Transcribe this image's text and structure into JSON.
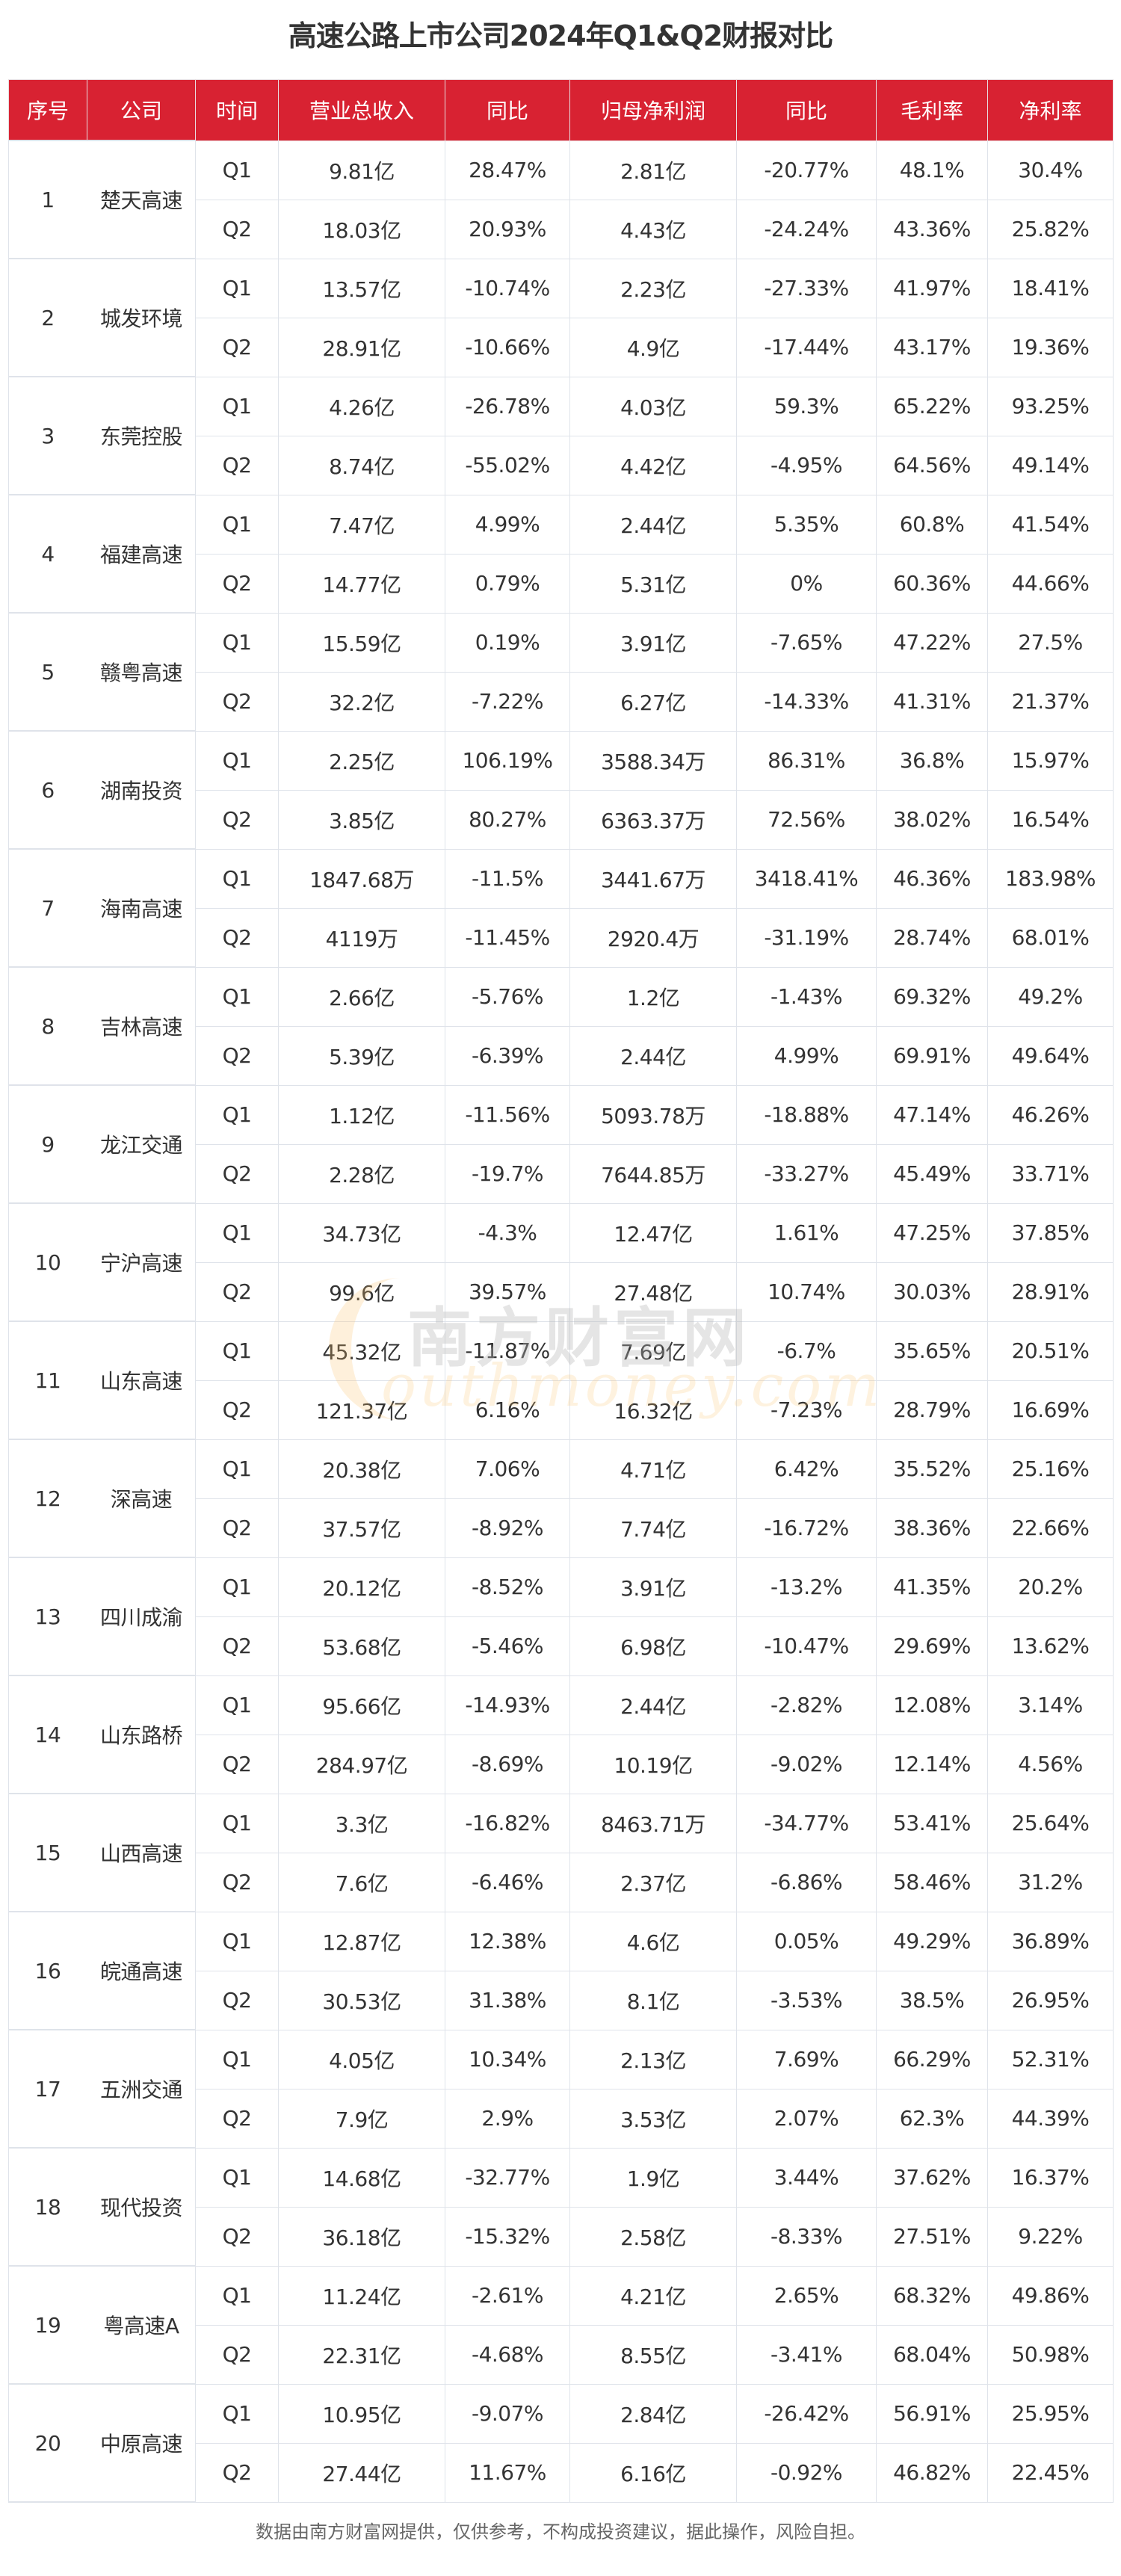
{
  "title": "高速公路上市公司2024年Q1&Q2财报对比",
  "colors": {
    "header_bg": "#d82232",
    "header_text": "#ffffff",
    "border": "#dfe3ea",
    "text": "#333333"
  },
  "table": {
    "headers": [
      "序号",
      "公司",
      "时间",
      "营业总收入",
      "同比",
      "归母净利润",
      "同比",
      "毛利率",
      "净利率"
    ],
    "companies": [
      {
        "no": "1",
        "name": "楚天高速",
        "rows": [
          [
            "Q1",
            "9.81亿",
            "28.47%",
            "2.81亿",
            "-20.77%",
            "48.1%",
            "30.4%"
          ],
          [
            "Q2",
            "18.03亿",
            "20.93%",
            "4.43亿",
            "-24.24%",
            "43.36%",
            "25.82%"
          ]
        ]
      },
      {
        "no": "2",
        "name": "城发环境",
        "rows": [
          [
            "Q1",
            "13.57亿",
            "-10.74%",
            "2.23亿",
            "-27.33%",
            "41.97%",
            "18.41%"
          ],
          [
            "Q2",
            "28.91亿",
            "-10.66%",
            "4.9亿",
            "-17.44%",
            "43.17%",
            "19.36%"
          ]
        ]
      },
      {
        "no": "3",
        "name": "东莞控股",
        "rows": [
          [
            "Q1",
            "4.26亿",
            "-26.78%",
            "4.03亿",
            "59.3%",
            "65.22%",
            "93.25%"
          ],
          [
            "Q2",
            "8.74亿",
            "-55.02%",
            "4.42亿",
            "-4.95%",
            "64.56%",
            "49.14%"
          ]
        ]
      },
      {
        "no": "4",
        "name": "福建高速",
        "rows": [
          [
            "Q1",
            "7.47亿",
            "4.99%",
            "2.44亿",
            "5.35%",
            "60.8%",
            "41.54%"
          ],
          [
            "Q2",
            "14.77亿",
            "0.79%",
            "5.31亿",
            "0%",
            "60.36%",
            "44.66%"
          ]
        ]
      },
      {
        "no": "5",
        "name": "赣粤高速",
        "rows": [
          [
            "Q1",
            "15.59亿",
            "0.19%",
            "3.91亿",
            "-7.65%",
            "47.22%",
            "27.5%"
          ],
          [
            "Q2",
            "32.2亿",
            "-7.22%",
            "6.27亿",
            "-14.33%",
            "41.31%",
            "21.37%"
          ]
        ]
      },
      {
        "no": "6",
        "name": "湖南投资",
        "rows": [
          [
            "Q1",
            "2.25亿",
            "106.19%",
            "3588.34万",
            "86.31%",
            "36.8%",
            "15.97%"
          ],
          [
            "Q2",
            "3.85亿",
            "80.27%",
            "6363.37万",
            "72.56%",
            "38.02%",
            "16.54%"
          ]
        ]
      },
      {
        "no": "7",
        "name": "海南高速",
        "rows": [
          [
            "Q1",
            "1847.68万",
            "-11.5%",
            "3441.67万",
            "3418.41%",
            "46.36%",
            "183.98%"
          ],
          [
            "Q2",
            "4119万",
            "-11.45%",
            "2920.4万",
            "-31.19%",
            "28.74%",
            "68.01%"
          ]
        ]
      },
      {
        "no": "8",
        "name": "吉林高速",
        "rows": [
          [
            "Q1",
            "2.66亿",
            "-5.76%",
            "1.2亿",
            "-1.43%",
            "69.32%",
            "49.2%"
          ],
          [
            "Q2",
            "5.39亿",
            "-6.39%",
            "2.44亿",
            "4.99%",
            "69.91%",
            "49.64%"
          ]
        ]
      },
      {
        "no": "9",
        "name": "龙江交通",
        "rows": [
          [
            "Q1",
            "1.12亿",
            "-11.56%",
            "5093.78万",
            "-18.88%",
            "47.14%",
            "46.26%"
          ],
          [
            "Q2",
            "2.28亿",
            "-19.7%",
            "7644.85万",
            "-33.27%",
            "45.49%",
            "33.71%"
          ]
        ]
      },
      {
        "no": "10",
        "name": "宁沪高速",
        "rows": [
          [
            "Q1",
            "34.73亿",
            "-4.3%",
            "12.47亿",
            "1.61%",
            "47.25%",
            "37.85%"
          ],
          [
            "Q2",
            "99.6亿",
            "39.57%",
            "27.48亿",
            "10.74%",
            "30.03%",
            "28.91%"
          ]
        ]
      },
      {
        "no": "11",
        "name": "山东高速",
        "rows": [
          [
            "Q1",
            "45.32亿",
            "-11.87%",
            "7.69亿",
            "-6.7%",
            "35.65%",
            "20.51%"
          ],
          [
            "Q2",
            "121.37亿",
            "6.16%",
            "16.32亿",
            "-7.23%",
            "28.79%",
            "16.69%"
          ]
        ]
      },
      {
        "no": "12",
        "name": "深高速",
        "rows": [
          [
            "Q1",
            "20.38亿",
            "7.06%",
            "4.71亿",
            "6.42%",
            "35.52%",
            "25.16%"
          ],
          [
            "Q2",
            "37.57亿",
            "-8.92%",
            "7.74亿",
            "-16.72%",
            "38.36%",
            "22.66%"
          ]
        ]
      },
      {
        "no": "13",
        "name": "四川成渝",
        "rows": [
          [
            "Q1",
            "20.12亿",
            "-8.52%",
            "3.91亿",
            "-13.2%",
            "41.35%",
            "20.2%"
          ],
          [
            "Q2",
            "53.68亿",
            "-5.46%",
            "6.98亿",
            "-10.47%",
            "29.69%",
            "13.62%"
          ]
        ]
      },
      {
        "no": "14",
        "name": "山东路桥",
        "rows": [
          [
            "Q1",
            "95.66亿",
            "-14.93%",
            "2.44亿",
            "-2.82%",
            "12.08%",
            "3.14%"
          ],
          [
            "Q2",
            "284.97亿",
            "-8.69%",
            "10.19亿",
            "-9.02%",
            "12.14%",
            "4.56%"
          ]
        ]
      },
      {
        "no": "15",
        "name": "山西高速",
        "rows": [
          [
            "Q1",
            "3.3亿",
            "-16.82%",
            "8463.71万",
            "-34.77%",
            "53.41%",
            "25.64%"
          ],
          [
            "Q2",
            "7.6亿",
            "-6.46%",
            "2.37亿",
            "-6.86%",
            "58.46%",
            "31.2%"
          ]
        ]
      },
      {
        "no": "16",
        "name": "皖通高速",
        "rows": [
          [
            "Q1",
            "12.87亿",
            "12.38%",
            "4.6亿",
            "0.05%",
            "49.29%",
            "36.89%"
          ],
          [
            "Q2",
            "30.53亿",
            "31.38%",
            "8.1亿",
            "-3.53%",
            "38.5%",
            "26.95%"
          ]
        ]
      },
      {
        "no": "17",
        "name": "五洲交通",
        "rows": [
          [
            "Q1",
            "4.05亿",
            "10.34%",
            "2.13亿",
            "7.69%",
            "66.29%",
            "52.31%"
          ],
          [
            "Q2",
            "7.9亿",
            "2.9%",
            "3.53亿",
            "2.07%",
            "62.3%",
            "44.39%"
          ]
        ]
      },
      {
        "no": "18",
        "name": "现代投资",
        "rows": [
          [
            "Q1",
            "14.68亿",
            "-32.77%",
            "1.9亿",
            "3.44%",
            "37.62%",
            "16.37%"
          ],
          [
            "Q2",
            "36.18亿",
            "-15.32%",
            "2.58亿",
            "-8.33%",
            "27.51%",
            "9.22%"
          ]
        ]
      },
      {
        "no": "19",
        "name": "粤高速A",
        "rows": [
          [
            "Q1",
            "11.24亿",
            "-2.61%",
            "4.21亿",
            "2.65%",
            "68.32%",
            "49.86%"
          ],
          [
            "Q2",
            "22.31亿",
            "-4.68%",
            "8.55亿",
            "-3.41%",
            "68.04%",
            "50.98%"
          ]
        ]
      },
      {
        "no": "20",
        "name": "中原高速",
        "rows": [
          [
            "Q1",
            "10.95亿",
            "-9.07%",
            "2.84亿",
            "-26.42%",
            "56.91%",
            "25.95%"
          ],
          [
            "Q2",
            "27.44亿",
            "11.67%",
            "6.16亿",
            "-0.92%",
            "46.82%",
            "22.45%"
          ]
        ]
      }
    ]
  },
  "watermark": {
    "cn": "南方财富网",
    "en": "outhmoney.com"
  },
  "footer": "数据由南方财富网提供，仅供参考，不构成投资建议，据此操作，风险自担。"
}
